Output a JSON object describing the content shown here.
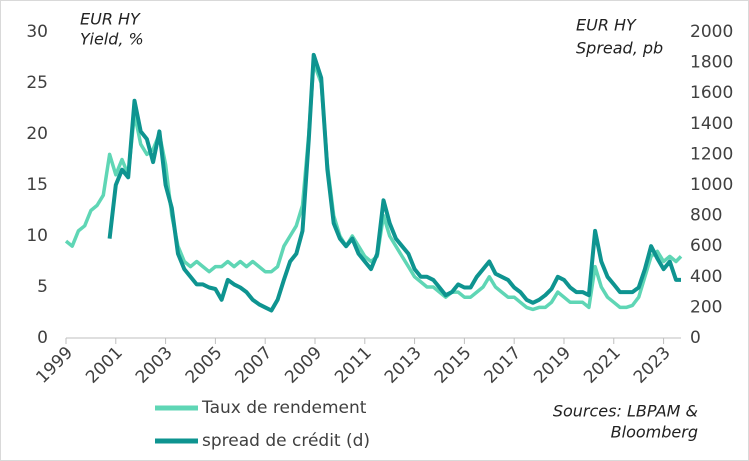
{
  "chart_data": {
    "type": "line",
    "y_title": [
      "EUR HY",
      "Yield, %"
    ],
    "y2_title": [
      "EUR HY",
      "Spread, pb"
    ],
    "source": [
      "Sources: LBPAM &",
      "Bloomberg"
    ],
    "x": [
      1999.0,
      1999.25,
      1999.5,
      1999.75,
      2000.0,
      2000.25,
      2000.5,
      2000.75,
      2001.0,
      2001.25,
      2001.5,
      2001.75,
      2002.0,
      2002.25,
      2002.5,
      2002.75,
      2003.0,
      2003.25,
      2003.5,
      2003.75,
      2004.0,
      2004.25,
      2004.5,
      2004.75,
      2005.0,
      2005.25,
      2005.5,
      2005.75,
      2006.0,
      2006.25,
      2006.5,
      2006.75,
      2007.0,
      2007.25,
      2007.5,
      2007.75,
      2008.0,
      2008.25,
      2008.5,
      2008.75,
      2008.95,
      2009.25,
      2009.5,
      2009.75,
      2010.0,
      2010.25,
      2010.5,
      2010.75,
      2011.0,
      2011.25,
      2011.5,
      2011.75,
      2012.0,
      2012.25,
      2012.5,
      2012.75,
      2013.0,
      2013.25,
      2013.5,
      2013.75,
      2014.0,
      2014.25,
      2014.5,
      2014.75,
      2015.0,
      2015.25,
      2015.5,
      2015.75,
      2016.0,
      2016.25,
      2016.5,
      2016.75,
      2017.0,
      2017.25,
      2017.5,
      2017.75,
      2018.0,
      2018.25,
      2018.5,
      2018.75,
      2019.0,
      2019.25,
      2019.5,
      2019.75,
      2020.0,
      2020.25,
      2020.5,
      2020.75,
      2021.0,
      2021.25,
      2021.5,
      2021.75,
      2022.0,
      2022.25,
      2022.5,
      2022.75,
      2023.0,
      2023.25,
      2023.5,
      2023.7
    ],
    "series": [
      {
        "name": "Taux de rendement",
        "color": "#5fd6b5",
        "axis": "y",
        "values": [
          9.5,
          9,
          10.5,
          11,
          12.5,
          13,
          14,
          18,
          16,
          17.5,
          16,
          22,
          19,
          18,
          18.5,
          20,
          17,
          12,
          9,
          7.5,
          7,
          7.5,
          7,
          6.5,
          7,
          7,
          7.5,
          7,
          7.5,
          7,
          7.5,
          7,
          6.5,
          6.5,
          7,
          9,
          10,
          11,
          13,
          20,
          27,
          25,
          17,
          12,
          10,
          9,
          10,
          9,
          8,
          7.5,
          8,
          12,
          10,
          9,
          8,
          7,
          6,
          5.5,
          5,
          5,
          4.5,
          4,
          4.5,
          4.5,
          4,
          4,
          4.5,
          5,
          6,
          5,
          4.5,
          4,
          4,
          3.5,
          3,
          2.8,
          3,
          3,
          3.5,
          4.5,
          4,
          3.5,
          3.5,
          3.5,
          3,
          7,
          5,
          4,
          3.5,
          3,
          3,
          3.2,
          4,
          6,
          8,
          8.5,
          7.5,
          8,
          7.5,
          8
        ]
      },
      {
        "name": "spread de crédit (d)",
        "color": "#0e9490",
        "axis": "y2",
        "values": [
          null,
          null,
          null,
          null,
          null,
          null,
          null,
          650,
          1000,
          1100,
          1050,
          1550,
          1350,
          1300,
          1150,
          1350,
          1000,
          850,
          550,
          450,
          400,
          350,
          350,
          330,
          320,
          250,
          380,
          350,
          330,
          300,
          250,
          220,
          200,
          180,
          250,
          380,
          500,
          550,
          700,
          1300,
          1850,
          1700,
          1100,
          750,
          650,
          600,
          650,
          550,
          500,
          450,
          550,
          900,
          750,
          650,
          600,
          550,
          450,
          400,
          400,
          380,
          330,
          280,
          300,
          350,
          330,
          330,
          400,
          450,
          500,
          420,
          400,
          380,
          330,
          300,
          250,
          230,
          250,
          280,
          320,
          400,
          380,
          330,
          300,
          300,
          280,
          700,
          500,
          400,
          350,
          300,
          300,
          300,
          330,
          450,
          600,
          520,
          450,
          500,
          380,
          380
        ]
      }
    ],
    "xlim": [
      1999,
      2023.7
    ],
    "xticks": [
      1999,
      2001,
      2003,
      2005,
      2007,
      2009,
      2011,
      2013,
      2015,
      2017,
      2019,
      2021,
      2023
    ],
    "ylim": [
      0,
      30
    ],
    "yticks": [
      0,
      5,
      10,
      15,
      20,
      25,
      30
    ],
    "y2lim": [
      0,
      2000
    ],
    "y2ticks": [
      0,
      200,
      400,
      600,
      800,
      1000,
      1200,
      1400,
      1600,
      1800,
      2000
    ]
  }
}
